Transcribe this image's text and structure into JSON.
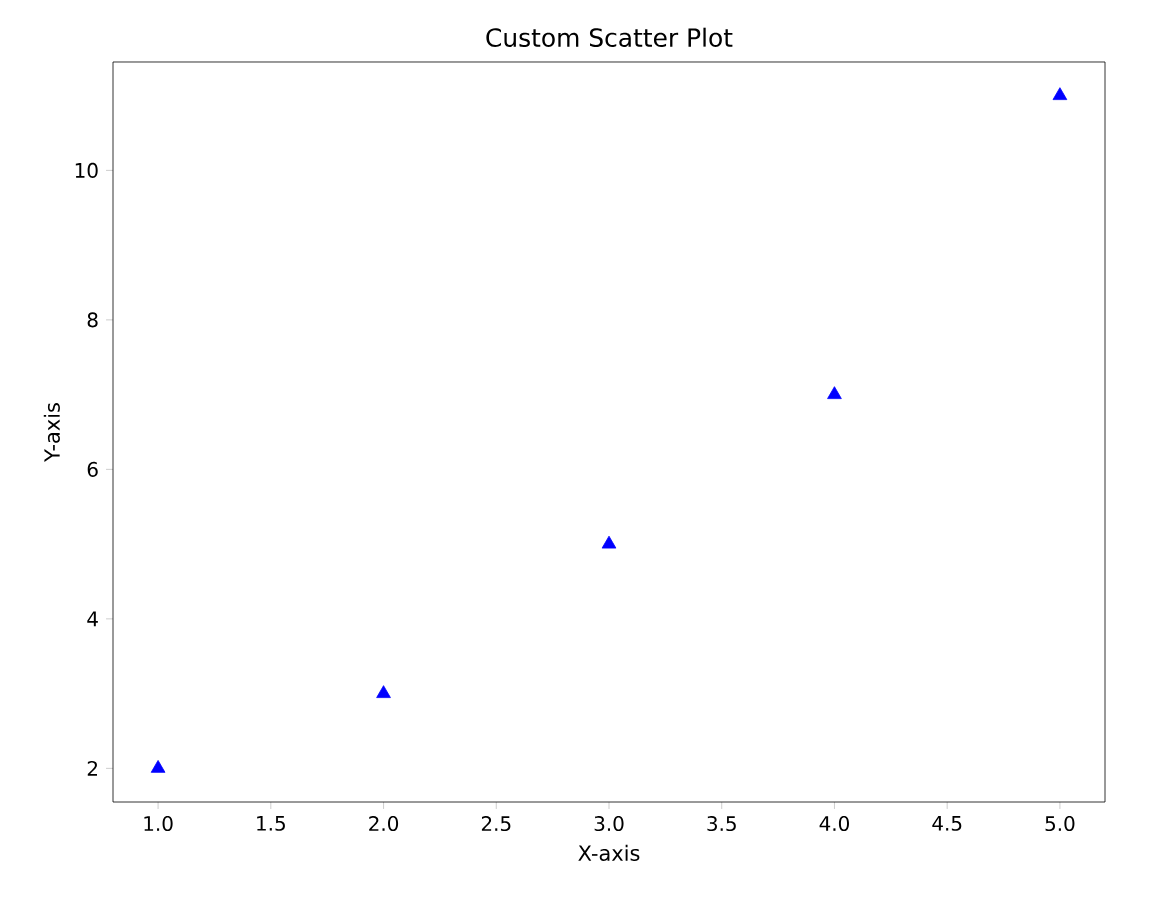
{
  "chart_data": {
    "type": "scatter",
    "title": "Custom Scatter Plot",
    "xlabel": "X-axis",
    "ylabel": "Y-axis",
    "x": [
      1,
      2,
      3,
      4,
      5
    ],
    "values": [
      2,
      3,
      5,
      7,
      11
    ],
    "color": "#0000ff",
    "marker": "triangle",
    "xlim": [
      0.8,
      5.2
    ],
    "ylim": [
      1.55,
      11.45
    ],
    "xticks": [
      {
        "value": 1,
        "label": "1.0"
      },
      {
        "value": 1.5,
        "label": "1.5"
      },
      {
        "value": 2,
        "label": "2.0"
      },
      {
        "value": 2.5,
        "label": "2.5"
      },
      {
        "value": 3,
        "label": "3.0"
      },
      {
        "value": 3.5,
        "label": "3.5"
      },
      {
        "value": 4,
        "label": "4.0"
      },
      {
        "value": 4.5,
        "label": "4.5"
      },
      {
        "value": 5,
        "label": "5.0"
      }
    ],
    "yticks": [
      2,
      4,
      6,
      8,
      10
    ]
  }
}
